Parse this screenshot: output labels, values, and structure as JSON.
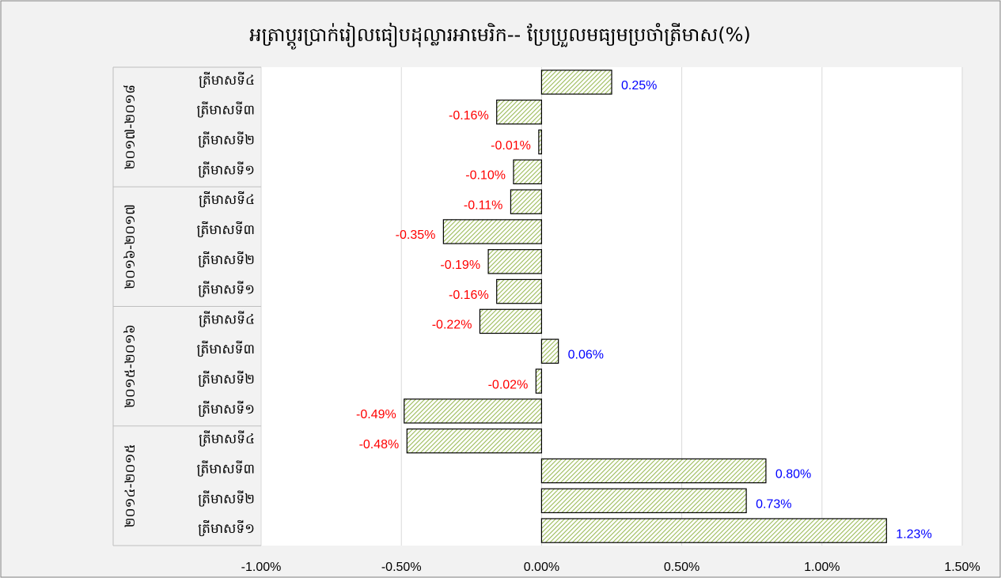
{
  "chart_data": {
    "type": "bar",
    "orientation": "horizontal",
    "title": "អត្រាប្តូរប្រាក់រៀលធៀបដុល្លារអាមេរិក-- ប្រែប្រួលមធ្យមប្រចាំត្រីមាស(%)",
    "category_groups": [
      "២០១៤-២០១៥",
      "២០១៥-២០១៦",
      "២០១៦-២០១៧",
      "២០១៧-២០១៨"
    ],
    "categories": [
      "ត្រីមាសទី១",
      "ត្រីមាសទី២",
      "ត្រីមាសទី៣",
      "ត្រីមាសទី៤",
      "ត្រីមាសទី១",
      "ត្រីមាសទី២",
      "ត្រីមាសទី៣",
      "ត្រីមាសទី៤",
      "ត្រីមាសទី១",
      "ត្រីមាសទី២",
      "ត្រីមាសទី៣",
      "ត្រីមាសទី៤",
      "ត្រីមាសទី១",
      "ត្រីមាសទី២",
      "ត្រីមាសទី៣",
      "ត្រីមាសទី៤"
    ],
    "values": [
      1.23,
      0.73,
      0.8,
      -0.48,
      -0.49,
      -0.02,
      0.06,
      -0.22,
      -0.16,
      -0.19,
      -0.35,
      -0.11,
      -0.1,
      -0.01,
      -0.16,
      0.25
    ],
    "value_labels": [
      "1.23%",
      "0.73%",
      "0.80%",
      "-0.48%",
      "-0.49%",
      "-0.02%",
      "0.06%",
      "-0.22%",
      "-0.16%",
      "-0.19%",
      "-0.35%",
      "-0.11%",
      "-0.10%",
      "-0.01%",
      "-0.16%",
      "0.25%"
    ],
    "color": "#9bbb59",
    "label_colors": {
      "positive": "#0000ff",
      "negative": "#ff0000"
    },
    "xlim": [
      -1.0,
      1.5
    ],
    "xticks": [
      {
        "value": -1.0,
        "label": "-1.00%"
      },
      {
        "value": -0.5,
        "label": "-0.50%"
      },
      {
        "value": 0,
        "label": "0.00%"
      },
      {
        "value": 0.5,
        "label": "0.50%"
      },
      {
        "value": 1.0,
        "label": "1.00%"
      },
      {
        "value": 1.5,
        "label": "1.50%"
      }
    ],
    "grid": true
  }
}
